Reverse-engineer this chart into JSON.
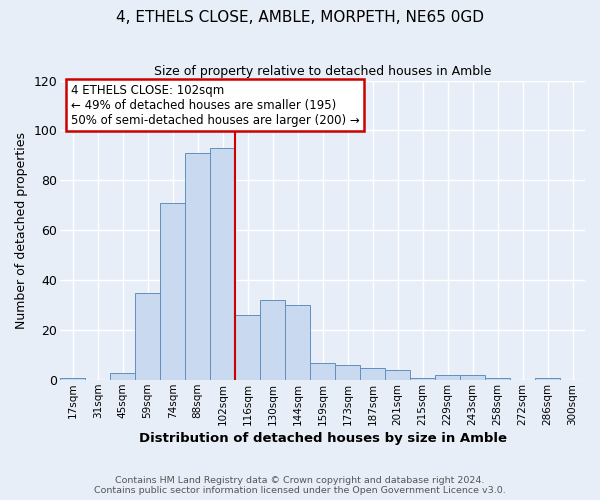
{
  "title": "4, ETHELS CLOSE, AMBLE, MORPETH, NE65 0GD",
  "subtitle": "Size of property relative to detached houses in Amble",
  "xlabel": "Distribution of detached houses by size in Amble",
  "ylabel": "Number of detached properties",
  "bar_labels": [
    "17sqm",
    "31sqm",
    "45sqm",
    "59sqm",
    "74sqm",
    "88sqm",
    "102sqm",
    "116sqm",
    "130sqm",
    "144sqm",
    "159sqm",
    "173sqm",
    "187sqm",
    "201sqm",
    "215sqm",
    "229sqm",
    "243sqm",
    "258sqm",
    "272sqm",
    "286sqm",
    "300sqm"
  ],
  "bar_values": [
    1,
    0,
    3,
    35,
    71,
    91,
    93,
    26,
    32,
    30,
    7,
    6,
    5,
    4,
    1,
    2,
    2,
    1,
    0,
    1,
    0
  ],
  "bar_color": "#c8d9f0",
  "bar_edge_color": "#6090c0",
  "background_color": "#e8eef8",
  "axes_bg_color": "#e8eef8",
  "grid_color": "#ffffff",
  "ylim": [
    0,
    120
  ],
  "yticks": [
    0,
    20,
    40,
    60,
    80,
    100,
    120
  ],
  "vline_color": "#cc0000",
  "annotation_line1": "4 ETHELS CLOSE: 102sqm",
  "annotation_line2": "← 49% of detached houses are smaller (195)",
  "annotation_line3": "50% of semi-detached houses are larger (200) →",
  "annotation_box_color": "#ffffff",
  "annotation_box_edge": "#cc0000",
  "footer_line1": "Contains HM Land Registry data © Crown copyright and database right 2024.",
  "footer_line2": "Contains public sector information licensed under the Open Government Licence v3.0."
}
